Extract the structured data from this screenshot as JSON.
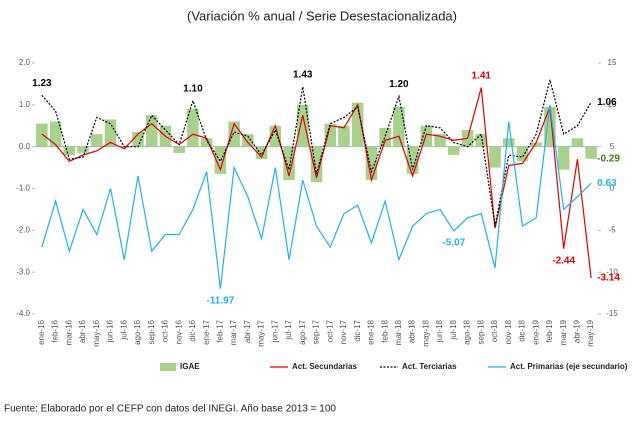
{
  "chart_data": {
    "type": "combo",
    "title": "(Variación % anual / Serie Desestacionalizada)",
    "categories": [
      "ene-16",
      "feb-16",
      "mar-16",
      "abr-16",
      "may-16",
      "jun-16",
      "jul-16",
      "ago-16",
      "sep-16",
      "oct-16",
      "nov-16",
      "dic-16",
      "ene-17",
      "feb-17",
      "mar-17",
      "abr-17",
      "may-17",
      "jun-17",
      "jul-17",
      "ago-17",
      "sep-17",
      "oct-17",
      "nov-17",
      "dic-17",
      "ene-18",
      "feb-18",
      "mar-18",
      "abr-18",
      "may-18",
      "jun-18",
      "jul-18",
      "ago-18",
      "sep-18",
      "oct-18",
      "nov-18",
      "dic-18",
      "ene-19",
      "feb-19",
      "mar-19",
      "abr-19",
      "may-19"
    ],
    "ylim": [
      -4,
      2
    ],
    "yticks": [
      {
        "value": -4,
        "label": "-4.0"
      },
      {
        "value": -3,
        "label": "-3.0"
      },
      {
        "value": -2,
        "label": "-2.0"
      },
      {
        "value": -1,
        "label": "-1.0"
      },
      {
        "value": 0,
        "label": "0.0"
      },
      {
        "value": 1,
        "label": "1.0"
      },
      {
        "value": 2,
        "label": "2.0"
      }
    ],
    "y2lim": [
      -15,
      15
    ],
    "y2ticks": [
      -15,
      -10,
      -5,
      0,
      5,
      10,
      15
    ],
    "series": [
      {
        "name": "IGAE",
        "type": "bar",
        "color": "#a9d18e",
        "values": [
          0.55,
          0.6,
          -0.2,
          -0.15,
          0.3,
          0.65,
          0.0,
          0.35,
          0.75,
          0.5,
          -0.15,
          0.9,
          0.2,
          -0.65,
          0.6,
          0.3,
          -0.3,
          0.5,
          -0.8,
          1.0,
          -0.85,
          0.55,
          0.5,
          1.05,
          -0.8,
          0.45,
          0.95,
          -0.65,
          0.5,
          0.3,
          -0.2,
          0.4,
          0.3,
          -0.5,
          0.2,
          -0.35,
          0.1,
          0.95,
          -0.55,
          0.2,
          -0.29
        ],
        "value_labels": [
          null,
          null,
          null,
          null,
          null,
          null,
          null,
          null,
          null,
          null,
          null,
          null,
          null,
          null,
          null,
          null,
          null,
          null,
          null,
          null,
          null,
          null,
          null,
          null,
          null,
          null,
          null,
          null,
          null,
          null,
          null,
          null,
          null,
          null,
          null,
          null,
          null,
          null,
          null,
          null,
          "-0.29"
        ],
        "label_color": "#3a7d22"
      },
      {
        "name": "Act. Secundarias",
        "type": "line",
        "color": "#e00000",
        "values": [
          0.3,
          0.05,
          -0.35,
          -0.2,
          -0.1,
          0.1,
          -0.05,
          0.3,
          0.55,
          0.25,
          0.05,
          0.3,
          0.2,
          -0.55,
          0.55,
          0.1,
          -0.25,
          0.5,
          -0.7,
          0.75,
          -0.75,
          0.5,
          0.45,
          1.0,
          -0.8,
          0.15,
          0.25,
          -0.7,
          0.3,
          0.25,
          0.15,
          0.2,
          1.41,
          -1.95,
          -0.45,
          -0.4,
          0.1,
          0.95,
          -2.44,
          -0.3,
          -3.14
        ],
        "value_labels": [
          null,
          null,
          null,
          null,
          null,
          null,
          null,
          null,
          null,
          null,
          null,
          null,
          null,
          null,
          null,
          null,
          null,
          null,
          null,
          null,
          null,
          null,
          null,
          null,
          null,
          null,
          null,
          null,
          null,
          null,
          null,
          null,
          "1.41",
          null,
          null,
          null,
          null,
          null,
          "-2.44",
          null,
          "-3.14"
        ],
        "label_color": "#e00000"
      },
      {
        "name": "Act. Terciarias",
        "type": "line",
        "dash": true,
        "color": "#000000",
        "values": [
          1.23,
          0.85,
          -0.3,
          -0.25,
          0.7,
          0.55,
          0.0,
          0.0,
          0.75,
          0.4,
          0.05,
          1.1,
          0.15,
          -0.35,
          0.35,
          0.25,
          -0.2,
          0.4,
          -0.55,
          1.43,
          -0.65,
          0.55,
          0.7,
          0.95,
          -0.6,
          0.25,
          1.2,
          -0.55,
          0.5,
          0.45,
          0.1,
          0.0,
          0.3,
          -1.9,
          -0.2,
          -0.25,
          0.3,
          1.6,
          0.3,
          0.5,
          1.06
        ],
        "value_labels": [
          "1.23",
          null,
          null,
          null,
          null,
          null,
          null,
          null,
          null,
          null,
          null,
          "1.10",
          null,
          null,
          null,
          null,
          null,
          null,
          null,
          "1.43",
          null,
          null,
          null,
          null,
          null,
          null,
          "1.20",
          null,
          null,
          null,
          null,
          null,
          null,
          null,
          null,
          null,
          null,
          null,
          null,
          null,
          "1.06"
        ],
        "label_color": "#000000"
      },
      {
        "name": "Act. Primarias (eje secundario)",
        "type": "line",
        "axis": "y2",
        "color": "#1fb3e6",
        "values": [
          -7,
          -1.5,
          -7.5,
          -2.5,
          -5.5,
          0,
          -8.5,
          1.5,
          -7.5,
          -5.5,
          -5.5,
          -2.5,
          2,
          -11.97,
          2.5,
          -1,
          -6,
          2.5,
          -8.5,
          1,
          -4.5,
          -7,
          -3,
          -2,
          -6.5,
          -1.5,
          -8.5,
          -4.5,
          -3,
          -2.5,
          -5.07,
          -3.5,
          -3,
          -9.5,
          8,
          -4.5,
          -3.5,
          10,
          -2.5,
          -1,
          0.63
        ],
        "value_labels": [
          null,
          null,
          null,
          null,
          null,
          null,
          null,
          null,
          null,
          null,
          null,
          null,
          null,
          "-11.97",
          null,
          null,
          null,
          null,
          null,
          null,
          null,
          null,
          null,
          null,
          null,
          null,
          null,
          null,
          null,
          null,
          "-5.07",
          null,
          null,
          null,
          null,
          null,
          null,
          null,
          null,
          null,
          "0.63"
        ],
        "label_color": "#1fb3e6"
      }
    ],
    "footnote": "Fuente: Elaborado por el CEFP con datos del INEGI. Año base 2013 = 100"
  }
}
